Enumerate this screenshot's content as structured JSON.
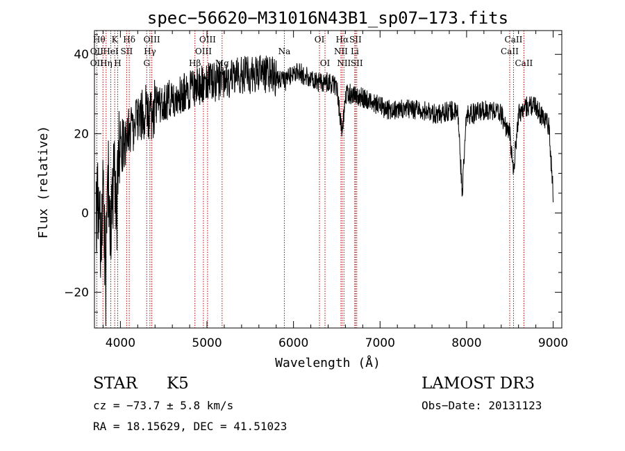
{
  "chart_data": {
    "type": "line",
    "title": "spec−56620−M31016N43B1_sp07−173.fits",
    "xlabel": "Wavelength (Å)",
    "ylabel": "Flux (relative)",
    "xlim": [
      3700,
      9100
    ],
    "ylim": [
      -29,
      46
    ],
    "xticks": [
      4000,
      5000,
      6000,
      7000,
      8000,
      9000
    ],
    "xtick_labels": [
      "4000",
      "5000",
      "6000",
      "7000",
      "8000",
      "9000"
    ],
    "yticks": [
      -20,
      0,
      20,
      40
    ],
    "ytick_labels": [
      "−20",
      "0",
      "20",
      "40"
    ],
    "series": [
      {
        "name": "spectrum",
        "x": [
          3720,
          3750,
          3780,
          3800,
          3830,
          3860,
          3890,
          3920,
          3950,
          3980,
          4000,
          4050,
          4100,
          4150,
          4200,
          4250,
          4300,
          4350,
          4400,
          4500,
          4600,
          4700,
          4800,
          4900,
          5000,
          5100,
          5200,
          5300,
          5400,
          5500,
          5600,
          5700,
          5800,
          5900,
          6000,
          6100,
          6200,
          6300,
          6400,
          6500,
          6560,
          6600,
          6700,
          6800,
          6900,
          7000,
          7100,
          7200,
          7300,
          7400,
          7500,
          7600,
          7700,
          7800,
          7900,
          7950,
          8000,
          8100,
          8200,
          8300,
          8400,
          8450,
          8500,
          8540,
          8600,
          8700,
          8800,
          8850,
          8900,
          8950,
          9000
        ],
        "y": [
          -5,
          8,
          -12,
          4,
          -18,
          6,
          -8,
          10,
          -2,
          14,
          16,
          18,
          20,
          22,
          24,
          25,
          26,
          24,
          27,
          28,
          29,
          30,
          31,
          32,
          33,
          33,
          34,
          34,
          35,
          35,
          35,
          35,
          34,
          33,
          36,
          35,
          34,
          33,
          33,
          32,
          20,
          30,
          30,
          29,
          28,
          27,
          26,
          26,
          26,
          26,
          26,
          25,
          25,
          26,
          25,
          5,
          25,
          25,
          26,
          26,
          25,
          22,
          20,
          10,
          25,
          27,
          27,
          25,
          24,
          22,
          5
        ]
      }
    ],
    "line_markers": [
      {
        "name": "Hθ",
        "wavelength": 3798
      },
      {
        "name": "OII",
        "wavelength": 3727
      },
      {
        "name": "Hη",
        "wavelength": 3835
      },
      {
        "name": "HeI",
        "wavelength": 3889
      },
      {
        "name": "K",
        "wavelength": 3934
      },
      {
        "name": "H",
        "wavelength": 3969
      },
      {
        "name": "SII",
        "wavelength": 4072
      },
      {
        "name": "Hδ",
        "wavelength": 4102
      },
      {
        "name": "G",
        "wavelength": 4304
      },
      {
        "name": "Hγ",
        "wavelength": 4341
      },
      {
        "name": "OIII",
        "wavelength": 4363
      },
      {
        "name": "Hβ",
        "wavelength": 4861
      },
      {
        "name": "OIII",
        "wavelength": 4959
      },
      {
        "name": "OIII",
        "wavelength": 5007
      },
      {
        "name": "Mg",
        "wavelength": 5175
      },
      {
        "name": "Na",
        "wavelength": 5894
      },
      {
        "name": "OI",
        "wavelength": 6300
      },
      {
        "name": "OI",
        "wavelength": 6364
      },
      {
        "name": "NII",
        "wavelength": 6548
      },
      {
        "name": "Hα",
        "wavelength": 6563
      },
      {
        "name": "NII",
        "wavelength": 6583
      },
      {
        "name": "Li",
        "wavelength": 6708
      },
      {
        "name": "SII",
        "wavelength": 6716
      },
      {
        "name": "SII",
        "wavelength": 6731
      },
      {
        "name": "CaII",
        "wavelength": 8498
      },
      {
        "name": "CaII",
        "wavelength": 8542
      },
      {
        "name": "CaII",
        "wavelength": 8662
      }
    ],
    "marker_labels": [
      {
        "text": "Hθ",
        "wavelength": 3755,
        "row": 0
      },
      {
        "text": "K",
        "wavelength": 3934,
        "row": 0
      },
      {
        "text": "Hδ",
        "wavelength": 4102,
        "row": 0
      },
      {
        "text": "OIII",
        "wavelength": 4363,
        "row": 0
      },
      {
        "text": "OIII",
        "wavelength": 5007,
        "row": 0
      },
      {
        "text": "OI",
        "wavelength": 6300,
        "row": 0
      },
      {
        "text": "Hα",
        "wavelength": 6563,
        "row": 0
      },
      {
        "text": "SII",
        "wavelength": 6716,
        "row": 0
      },
      {
        "text": "CaII",
        "wavelength": 8542,
        "row": 0
      },
      {
        "text": "OII",
        "wavelength": 3727,
        "row": 1
      },
      {
        "text": "HeI",
        "wavelength": 3889,
        "row": 1
      },
      {
        "text": "SII",
        "wavelength": 4072,
        "row": 1
      },
      {
        "text": "Hγ",
        "wavelength": 4341,
        "row": 1
      },
      {
        "text": "OIII",
        "wavelength": 4959,
        "row": 1
      },
      {
        "text": "Na",
        "wavelength": 5894,
        "row": 1
      },
      {
        "text": "NII",
        "wavelength": 6548,
        "row": 1
      },
      {
        "text": "Li",
        "wavelength": 6708,
        "row": 1
      },
      {
        "text": "CaII",
        "wavelength": 8498,
        "row": 1
      },
      {
        "text": "OII",
        "wavelength": 3727,
        "row": 2
      },
      {
        "text": "Hη",
        "wavelength": 3835,
        "row": 2
      },
      {
        "text": "H",
        "wavelength": 3969,
        "row": 2
      },
      {
        "text": "G",
        "wavelength": 4304,
        "row": 2
      },
      {
        "text": "Hβ",
        "wavelength": 4861,
        "row": 2
      },
      {
        "text": "Mg",
        "wavelength": 5175,
        "row": 2
      },
      {
        "text": "OI",
        "wavelength": 6364,
        "row": 2
      },
      {
        "text": "NII",
        "wavelength": 6583,
        "row": 2
      },
      {
        "text": "SII",
        "wavelength": 6731,
        "row": 2
      },
      {
        "text": "CaII",
        "wavelength": 8662,
        "row": 2
      }
    ],
    "colors": {
      "spectrum": "#000000",
      "markers": "#b00000",
      "axes": "#000000"
    }
  },
  "info": {
    "object_class": "STAR",
    "subclass": "K5",
    "survey": "LAMOST DR3",
    "redshift": "cz = −73.7 ± 5.8 km/s",
    "obs_date": "Obs−Date: 20131123",
    "coords": "RA =  18.15629, DEC =  41.51023"
  }
}
